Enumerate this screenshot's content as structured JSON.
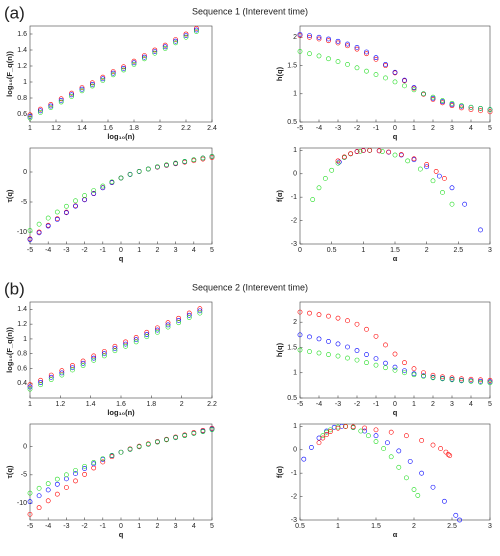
{
  "panels": [
    {
      "label": "(a)",
      "title": "Sequence 1 (Interevent time)"
    },
    {
      "label": "(b)",
      "title": "Sequence 2 (Interevent time)"
    }
  ],
  "chart_data": [
    {
      "type": "scatter",
      "xlabel": "log₁₀(n)",
      "ylabel": "log₁₀(F_q(n))",
      "xlim": [
        1,
        2.4
      ],
      "ylim": [
        0.5,
        1.7
      ],
      "xticks": [
        1,
        1.2,
        1.4,
        1.6,
        1.8,
        2,
        2.2,
        2.4
      ],
      "yticks": [
        0.6,
        0.8,
        1,
        1.2,
        1.4,
        1.6
      ],
      "x": [
        1.0,
        1.08,
        1.16,
        1.24,
        1.32,
        1.4,
        1.48,
        1.56,
        1.64,
        1.72,
        1.8,
        1.88,
        1.96,
        2.04,
        2.12,
        2.2,
        2.28
      ],
      "series": [
        {
          "color": "#ff0000",
          "values": [
            0.59,
            0.66,
            0.72,
            0.79,
            0.86,
            0.93,
            0.99,
            1.06,
            1.13,
            1.19,
            1.26,
            1.33,
            1.4,
            1.46,
            1.53,
            1.6,
            1.67
          ]
        },
        {
          "color": "#0000ff",
          "values": [
            0.57,
            0.64,
            0.7,
            0.77,
            0.84,
            0.91,
            0.97,
            1.04,
            1.11,
            1.17,
            1.24,
            1.31,
            1.38,
            1.44,
            1.51,
            1.58,
            1.65
          ]
        },
        {
          "color": "#22dd22",
          "values": [
            0.55,
            0.62,
            0.68,
            0.75,
            0.82,
            0.89,
            0.95,
            1.02,
            1.09,
            1.15,
            1.22,
            1.29,
            1.36,
            1.42,
            1.49,
            1.56,
            1.63
          ]
        }
      ]
    },
    {
      "type": "scatter",
      "xlabel": "q",
      "ylabel": "h(q)",
      "xlim": [
        -5,
        5
      ],
      "ylim": [
        0.5,
        2.2
      ],
      "xticks": [
        -5,
        -4,
        -3,
        -2,
        -1,
        0,
        1,
        2,
        3,
        4,
        5
      ],
      "yticks": [
        0.5,
        1,
        1.5,
        2
      ],
      "x": [
        -5,
        -4.5,
        -4,
        -3.5,
        -3,
        -2.5,
        -2,
        -1.5,
        -1,
        -0.5,
        0,
        0.5,
        1,
        1.5,
        2,
        2.5,
        3,
        3.5,
        4,
        4.5,
        5
      ],
      "series": [
        {
          "color": "#ff0000",
          "values": [
            2.03,
            2.0,
            1.97,
            1.94,
            1.9,
            1.85,
            1.79,
            1.71,
            1.61,
            1.5,
            1.37,
            1.23,
            1.1,
            0.99,
            0.9,
            0.84,
            0.79,
            0.75,
            0.72,
            0.7,
            0.68
          ]
        },
        {
          "color": "#0000ff",
          "values": [
            2.05,
            2.03,
            2.0,
            1.97,
            1.93,
            1.88,
            1.82,
            1.74,
            1.64,
            1.52,
            1.38,
            1.24,
            1.11,
            1.0,
            0.92,
            0.86,
            0.81,
            0.78,
            0.76,
            0.74,
            0.72
          ]
        },
        {
          "color": "#22dd22",
          "values": [
            1.75,
            1.71,
            1.67,
            1.62,
            1.57,
            1.52,
            1.46,
            1.4,
            1.34,
            1.28,
            1.21,
            1.14,
            1.07,
            1.0,
            0.94,
            0.88,
            0.83,
            0.79,
            0.76,
            0.74,
            0.72
          ]
        }
      ]
    },
    {
      "type": "scatter",
      "xlabel": "q",
      "ylabel": "τ(q)",
      "xlim": [
        -5,
        5
      ],
      "ylim": [
        -12,
        4
      ],
      "xticks": [
        -5,
        -4,
        -3,
        -2,
        -1,
        0,
        1,
        2,
        3,
        4,
        5
      ],
      "yticks": [
        -10,
        -5,
        0
      ],
      "x": [
        -5,
        -4.5,
        -4,
        -3.5,
        -3,
        -2.5,
        -2,
        -1.5,
        -1,
        -0.5,
        0,
        0.5,
        1,
        1.5,
        2,
        2.5,
        3,
        3.5,
        4,
        4.5,
        5
      ],
      "series": [
        {
          "color": "#ff0000",
          "values": [
            -11.15,
            -10.0,
            -8.88,
            -7.79,
            -6.7,
            -5.63,
            -4.58,
            -3.57,
            -2.61,
            -1.75,
            -1,
            -0.39,
            0.1,
            0.49,
            0.8,
            1.1,
            1.37,
            1.63,
            1.88,
            2.15,
            2.4
          ]
        },
        {
          "color": "#0000ff",
          "values": [
            -11.25,
            -10.14,
            -9.0,
            -7.9,
            -6.79,
            -5.7,
            -4.64,
            -3.61,
            -2.64,
            -1.76,
            -1,
            -0.38,
            0.11,
            0.5,
            0.84,
            1.15,
            1.43,
            1.73,
            2.04,
            2.33,
            2.6
          ]
        },
        {
          "color": "#22dd22",
          "values": [
            -9.75,
            -8.7,
            -7.68,
            -6.67,
            -5.71,
            -4.8,
            -3.92,
            -3.1,
            -2.34,
            -1.64,
            -1,
            -0.43,
            0.07,
            0.5,
            0.88,
            1.2,
            1.49,
            1.77,
            2.04,
            2.33,
            2.6
          ]
        }
      ]
    },
    {
      "type": "scatter",
      "xlabel": "α",
      "ylabel": "f(α)",
      "xlim": [
        0,
        3
      ],
      "ylim": [
        -3,
        1.1
      ],
      "xticks": [
        0,
        0.5,
        1,
        1.5,
        2,
        2.5,
        3
      ],
      "yticks": [
        -3,
        -2,
        -1,
        0,
        1
      ],
      "series": [
        {
          "color": "#0000ff",
          "x": [
            0.62,
            0.7,
            0.8,
            0.9,
            1.0,
            1.1,
            1.25,
            1.4,
            1.6,
            1.8,
            2.0,
            2.2,
            2.4,
            2.6,
            2.85
          ],
          "values": [
            0.5,
            0.7,
            0.85,
            0.95,
            0.99,
            1.0,
            0.98,
            0.92,
            0.8,
            0.6,
            0.3,
            -0.1,
            -0.6,
            -1.3,
            -2.4
          ]
        },
        {
          "color": "#22dd22",
          "x": [
            0.2,
            0.3,
            0.4,
            0.5,
            0.6,
            0.7,
            0.8,
            0.95,
            1.1,
            1.3,
            1.5,
            1.7,
            1.9,
            2.1,
            2.25,
            2.4
          ],
          "values": [
            -1.1,
            -0.6,
            -0.2,
            0.15,
            0.45,
            0.7,
            0.85,
            0.96,
            1.0,
            0.95,
            0.8,
            0.55,
            0.2,
            -0.3,
            -0.8,
            -1.3
          ]
        },
        {
          "color": "#ff0000",
          "x": [
            0.6,
            0.7,
            0.8,
            0.9,
            1.0,
            1.1,
            1.25,
            1.4,
            1.6,
            1.8,
            2.0,
            2.15,
            2.28
          ],
          "values": [
            0.55,
            0.72,
            0.86,
            0.95,
            0.99,
            1.0,
            0.98,
            0.93,
            0.82,
            0.64,
            0.4,
            0.1,
            -0.2
          ]
        }
      ]
    },
    {
      "type": "scatter",
      "xlabel": "log₁₀(n)",
      "ylabel": "log₁₀(F_q(n))",
      "xlim": [
        1,
        2.2
      ],
      "ylim": [
        0.2,
        1.5
      ],
      "xticks": [
        1,
        1.2,
        1.4,
        1.6,
        1.8,
        2,
        2.2
      ],
      "yticks": [
        0.4,
        0.6,
        0.8,
        1,
        1.2,
        1.4
      ],
      "x": [
        1.0,
        1.07,
        1.14,
        1.21,
        1.28,
        1.35,
        1.42,
        1.49,
        1.56,
        1.63,
        1.7,
        1.77,
        1.84,
        1.91,
        1.98,
        2.05,
        2.12
      ],
      "series": [
        {
          "color": "#ff0000",
          "values": [
            0.38,
            0.44,
            0.51,
            0.57,
            0.64,
            0.7,
            0.77,
            0.83,
            0.9,
            0.96,
            1.02,
            1.09,
            1.15,
            1.22,
            1.28,
            1.35,
            1.41
          ]
        },
        {
          "color": "#0000ff",
          "values": [
            0.35,
            0.41,
            0.48,
            0.54,
            0.61,
            0.67,
            0.74,
            0.8,
            0.87,
            0.93,
            0.99,
            1.06,
            1.12,
            1.19,
            1.25,
            1.32,
            1.38
          ]
        },
        {
          "color": "#22dd22",
          "values": [
            0.32,
            0.38,
            0.45,
            0.51,
            0.58,
            0.64,
            0.71,
            0.77,
            0.84,
            0.9,
            0.96,
            1.03,
            1.09,
            1.16,
            1.22,
            1.29,
            1.35
          ]
        }
      ]
    },
    {
      "type": "scatter",
      "xlabel": "q",
      "ylabel": "h(q)",
      "xlim": [
        -5,
        5
      ],
      "ylim": [
        0.5,
        2.4
      ],
      "xticks": [
        -5,
        -4,
        -3,
        -2,
        -1,
        0,
        1,
        2,
        3,
        4,
        5
      ],
      "yticks": [
        0.5,
        1,
        1.5,
        2
      ],
      "x": [
        -5,
        -4.5,
        -4,
        -3.5,
        -3,
        -2.5,
        -2,
        -1.5,
        -1,
        -0.5,
        0,
        0.5,
        1,
        1.5,
        2,
        2.5,
        3,
        3.5,
        4,
        4.5,
        5
      ],
      "series": [
        {
          "color": "#ff0000",
          "values": [
            2.2,
            2.18,
            2.15,
            2.12,
            2.08,
            2.03,
            1.96,
            1.86,
            1.72,
            1.55,
            1.37,
            1.2,
            1.08,
            1.0,
            0.95,
            0.92,
            0.9,
            0.88,
            0.87,
            0.86,
            0.85
          ]
        },
        {
          "color": "#0000ff",
          "values": [
            1.75,
            1.71,
            1.67,
            1.62,
            1.57,
            1.51,
            1.44,
            1.36,
            1.28,
            1.19,
            1.11,
            1.04,
            0.98,
            0.94,
            0.91,
            0.89,
            0.87,
            0.85,
            0.84,
            0.83,
            0.82
          ]
        },
        {
          "color": "#22dd22",
          "values": [
            1.45,
            1.42,
            1.39,
            1.36,
            1.33,
            1.29,
            1.25,
            1.2,
            1.15,
            1.1,
            1.05,
            1.0,
            0.96,
            0.93,
            0.9,
            0.88,
            0.86,
            0.84,
            0.83,
            0.81,
            0.8
          ]
        }
      ]
    },
    {
      "type": "scatter",
      "xlabel": "q",
      "ylabel": "τ(q)",
      "xlim": [
        -5,
        5
      ],
      "ylim": [
        -13,
        4
      ],
      "xticks": [
        -5,
        -4,
        -3,
        -2,
        -1,
        0,
        1,
        2,
        3,
        4,
        5
      ],
      "yticks": [
        -10,
        -5,
        0
      ],
      "x": [
        -5,
        -4.5,
        -4,
        -3.5,
        -3,
        -2.5,
        -2,
        -1.5,
        -1,
        -0.5,
        0,
        0.5,
        1,
        1.5,
        2,
        2.5,
        3,
        3.5,
        4,
        4.5,
        5
      ],
      "series": [
        {
          "color": "#ff0000",
          "values": [
            -12,
            -10.81,
            -9.6,
            -8.42,
            -7.24,
            -6.08,
            -4.92,
            -3.79,
            -2.72,
            -1.78,
            -1,
            -0.4,
            0.08,
            0.5,
            0.9,
            1.3,
            1.7,
            2.08,
            2.48,
            2.87,
            3.25
          ]
        },
        {
          "color": "#0000ff",
          "values": [
            -9.75,
            -8.7,
            -7.68,
            -6.67,
            -5.71,
            -4.78,
            -3.88,
            -3.04,
            -2.28,
            -1.6,
            -1,
            -0.48,
            -0.02,
            0.41,
            0.82,
            1.23,
            1.61,
            1.98,
            2.36,
            2.74,
            3.1
          ]
        },
        {
          "color": "#22dd22",
          "values": [
            -8.25,
            -7.39,
            -6.56,
            -5.76,
            -4.99,
            -4.23,
            -3.5,
            -2.8,
            -2.15,
            -1.55,
            -1,
            -0.5,
            -0.04,
            0.4,
            0.8,
            1.2,
            1.58,
            1.94,
            2.32,
            2.65,
            3.0
          ]
        }
      ]
    },
    {
      "type": "scatter",
      "xlabel": "α",
      "ylabel": "f(α)",
      "xlim": [
        0.5,
        3
      ],
      "ylim": [
        -3,
        1.1
      ],
      "xticks": [
        0.5,
        1,
        1.5,
        2,
        2.5,
        3
      ],
      "yticks": [
        -3,
        -2,
        -1,
        0,
        1
      ],
      "series": [
        {
          "color": "#0000ff",
          "x": [
            0.55,
            0.65,
            0.75,
            0.85,
            0.95,
            1.05,
            1.2,
            1.35,
            1.5,
            1.65,
            1.8,
            1.95,
            2.1,
            2.25,
            2.4,
            2.55,
            2.6
          ],
          "values": [
            -0.4,
            0.1,
            0.5,
            0.8,
            0.96,
            1.0,
            0.95,
            0.8,
            0.6,
            0.3,
            -0.05,
            -0.5,
            -1.0,
            -1.6,
            -2.2,
            -2.8,
            -3.0
          ]
        },
        {
          "color": "#22dd22",
          "x": [
            0.8,
            0.85,
            0.9,
            1.0,
            1.1,
            1.2,
            1.3,
            1.4,
            1.5,
            1.6,
            1.7,
            1.8,
            1.9,
            2.0,
            2.05
          ],
          "values": [
            0.6,
            0.75,
            0.85,
            0.97,
            1.0,
            0.95,
            0.8,
            0.6,
            0.35,
            0.05,
            -0.3,
            -0.75,
            -1.2,
            -1.7,
            -1.95
          ]
        },
        {
          "color": "#ff0000",
          "x": [
            0.75,
            0.8,
            0.85,
            0.9,
            1.0,
            1.1,
            1.2,
            1.35,
            1.5,
            1.7,
            1.9,
            2.1,
            2.25,
            2.35,
            2.42,
            2.45,
            2.47
          ],
          "values": [
            0.3,
            0.5,
            0.65,
            0.78,
            0.92,
            0.99,
            0.98,
            0.93,
            0.85,
            0.75,
            0.6,
            0.4,
            0.2,
            0.05,
            -0.1,
            -0.2,
            -0.25
          ]
        }
      ]
    }
  ]
}
